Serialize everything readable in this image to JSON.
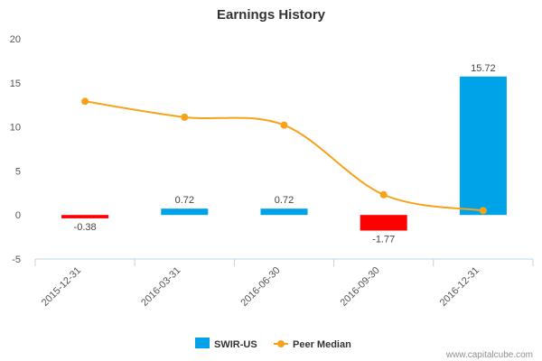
{
  "chart_data": {
    "type": "bar",
    "title": "Earnings History",
    "xlabel": "",
    "ylabel": "",
    "ylim": [
      -5,
      20
    ],
    "yticks": [
      -5,
      0,
      5,
      10,
      15,
      20
    ],
    "categories": [
      "2015-12-31",
      "2016-03-31",
      "2016-06-30",
      "2016-09-30",
      "2016-12-31"
    ],
    "series": [
      {
        "name": "SWIR-US",
        "kind": "bar",
        "values": [
          -0.38,
          0.72,
          0.72,
          -1.77,
          15.72
        ],
        "labels": [
          "-0.38",
          "0.72",
          "0.72",
          "-1.77",
          "15.72"
        ],
        "color_positive": "#00a2e8",
        "color_negative": "#ff0000"
      },
      {
        "name": "Peer Median",
        "kind": "line",
        "values": [
          12.9,
          11.1,
          10.2,
          2.3,
          0.5
        ],
        "color": "#f7a21b"
      }
    ],
    "grid": false,
    "legend": "bottom-center"
  },
  "credit": "www.capitalcube.com",
  "colors": {
    "axis": "#c0d0e0",
    "text": "#333333"
  }
}
